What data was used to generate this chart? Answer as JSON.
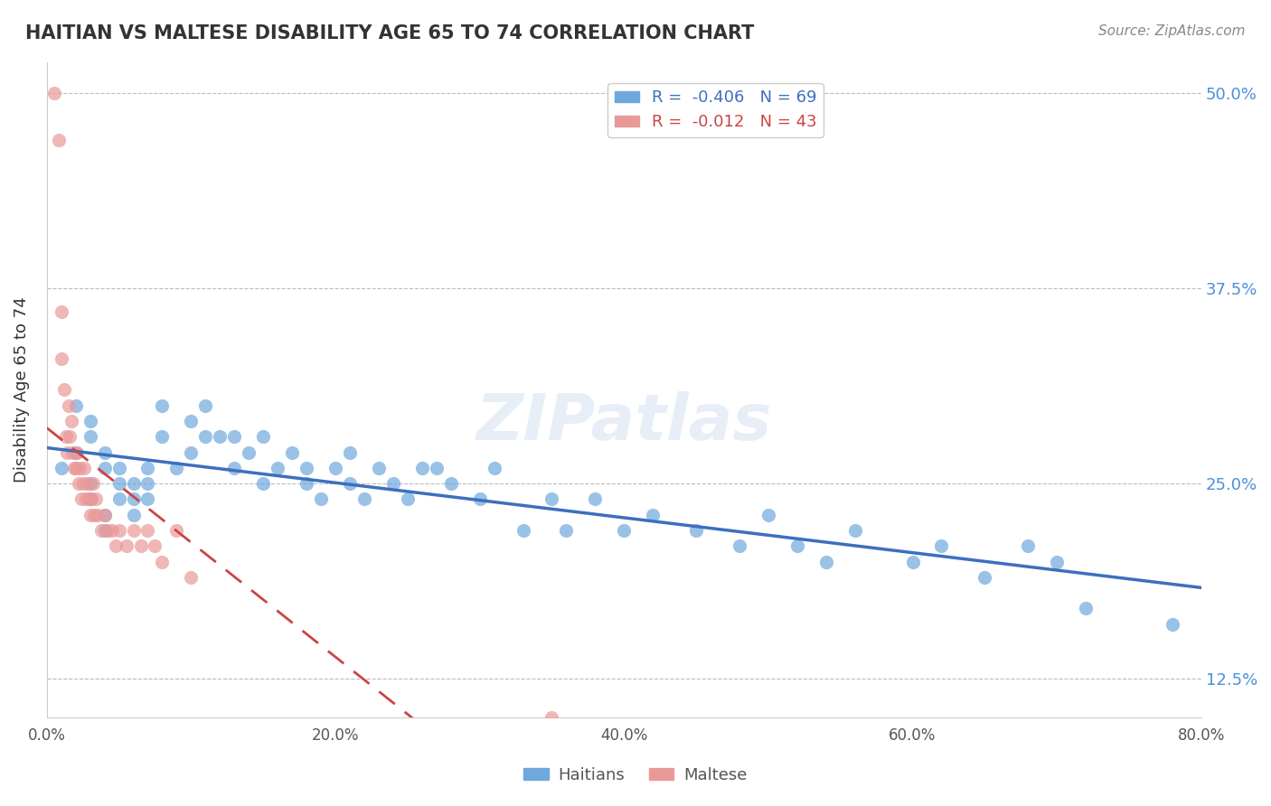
{
  "title": "HAITIAN VS MALTESE DISABILITY AGE 65 TO 74 CORRELATION CHART",
  "source_text": "Source: ZipAtlas.com",
  "xlabel": "",
  "ylabel": "Disability Age 65 to 74",
  "xlim": [
    0.0,
    0.8
  ],
  "ylim": [
    0.1,
    0.52
  ],
  "yticks": [
    0.125,
    0.25,
    0.375,
    0.5
  ],
  "ytick_labels": [
    "12.5%",
    "25.0%",
    "37.5%",
    "50.0%"
  ],
  "xticks": [
    0.0,
    0.2,
    0.4,
    0.6,
    0.8
  ],
  "xtick_labels": [
    "0.0%",
    "20.0%",
    "40.0%",
    "60.0%",
    "80.0%"
  ],
  "haitian_R": -0.406,
  "haitian_N": 69,
  "maltese_R": -0.012,
  "maltese_N": 43,
  "haitian_color": "#6fa8dc",
  "maltese_color": "#ea9999",
  "haitian_line_color": "#3d6fbf",
  "maltese_line_color": "#cc4444",
  "legend_haitian": "R =  -0.406   N = 69",
  "legend_maltese": "R =  -0.012   N = 43",
  "watermark": "ZIPatlas",
  "haitian_x": [
    0.01,
    0.02,
    0.02,
    0.03,
    0.03,
    0.03,
    0.03,
    0.04,
    0.04,
    0.04,
    0.04,
    0.05,
    0.05,
    0.05,
    0.06,
    0.06,
    0.06,
    0.07,
    0.07,
    0.07,
    0.08,
    0.08,
    0.09,
    0.1,
    0.1,
    0.11,
    0.11,
    0.12,
    0.13,
    0.13,
    0.14,
    0.15,
    0.15,
    0.16,
    0.17,
    0.18,
    0.18,
    0.19,
    0.2,
    0.21,
    0.21,
    0.22,
    0.23,
    0.24,
    0.25,
    0.26,
    0.27,
    0.28,
    0.3,
    0.31,
    0.33,
    0.35,
    0.36,
    0.38,
    0.4,
    0.42,
    0.45,
    0.48,
    0.5,
    0.52,
    0.54,
    0.56,
    0.6,
    0.62,
    0.65,
    0.68,
    0.7,
    0.72,
    0.78
  ],
  "haitian_y": [
    0.26,
    0.27,
    0.3,
    0.24,
    0.25,
    0.28,
    0.29,
    0.22,
    0.23,
    0.26,
    0.27,
    0.24,
    0.25,
    0.26,
    0.23,
    0.24,
    0.25,
    0.24,
    0.25,
    0.26,
    0.28,
    0.3,
    0.26,
    0.27,
    0.29,
    0.28,
    0.3,
    0.28,
    0.26,
    0.28,
    0.27,
    0.25,
    0.28,
    0.26,
    0.27,
    0.25,
    0.26,
    0.24,
    0.26,
    0.25,
    0.27,
    0.24,
    0.26,
    0.25,
    0.24,
    0.26,
    0.26,
    0.25,
    0.24,
    0.26,
    0.22,
    0.24,
    0.22,
    0.24,
    0.22,
    0.23,
    0.22,
    0.21,
    0.23,
    0.21,
    0.2,
    0.22,
    0.2,
    0.21,
    0.19,
    0.21,
    0.2,
    0.17,
    0.16
  ],
  "maltese_x": [
    0.005,
    0.008,
    0.01,
    0.01,
    0.012,
    0.013,
    0.014,
    0.015,
    0.016,
    0.017,
    0.018,
    0.019,
    0.02,
    0.021,
    0.022,
    0.023,
    0.024,
    0.025,
    0.026,
    0.027,
    0.028,
    0.029,
    0.03,
    0.031,
    0.032,
    0.033,
    0.034,
    0.035,
    0.038,
    0.04,
    0.042,
    0.045,
    0.048,
    0.05,
    0.055,
    0.06,
    0.065,
    0.07,
    0.075,
    0.08,
    0.09,
    0.1,
    0.35
  ],
  "maltese_y": [
    0.5,
    0.47,
    0.33,
    0.36,
    0.31,
    0.28,
    0.27,
    0.3,
    0.28,
    0.29,
    0.27,
    0.26,
    0.26,
    0.27,
    0.25,
    0.26,
    0.24,
    0.25,
    0.26,
    0.24,
    0.25,
    0.24,
    0.23,
    0.24,
    0.25,
    0.23,
    0.24,
    0.23,
    0.22,
    0.23,
    0.22,
    0.22,
    0.21,
    0.22,
    0.21,
    0.22,
    0.21,
    0.22,
    0.21,
    0.2,
    0.22,
    0.19,
    0.1
  ]
}
